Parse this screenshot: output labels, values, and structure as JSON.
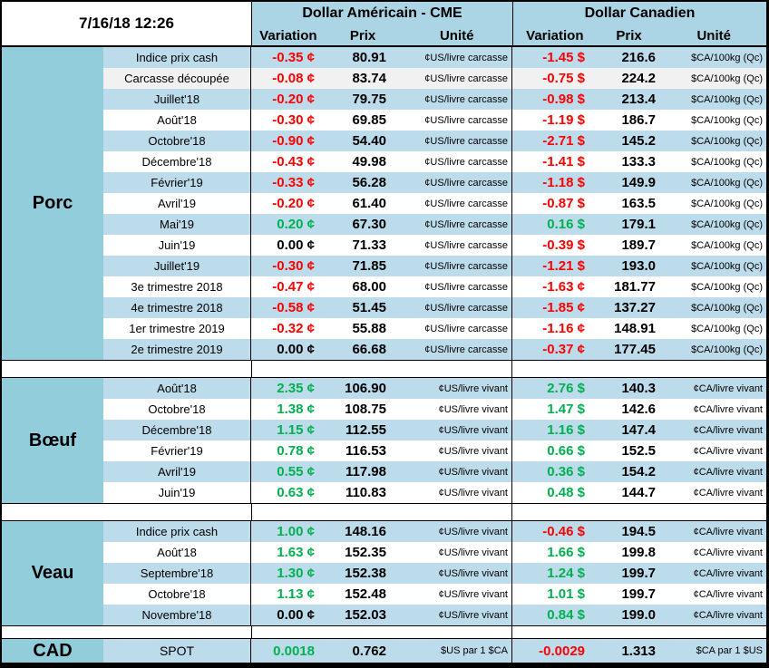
{
  "colors": {
    "section_teal": "#92CDDC",
    "row_blue": "#BDDCEB",
    "header_blue": "#ABD5E4",
    "positive_green": "#00B050",
    "negative_red": "#FF0000",
    "neutral_black": "#000000"
  },
  "header": {
    "timestamp": "7/16/18 12:26",
    "us": {
      "title": "Dollar Américain - CME",
      "variation": "Variation",
      "prix": "Prix",
      "unite": "Unité"
    },
    "ca": {
      "title": "Dollar Canadien",
      "variation": "Variation",
      "prix": "Prix",
      "unite": "Unité"
    }
  },
  "sections": [
    {
      "name": "Porc",
      "rows": [
        {
          "label": "Indice prix cash",
          "us": {
            "variation": "-0.35 ¢",
            "trend": "down",
            "prix": "80.91",
            "unite": "¢US/livre carcasse"
          },
          "ca": {
            "variation": "-1.45 $",
            "trend": "down",
            "prix": "216.6",
            "unite": "$CA/100kg (Qc)"
          }
        },
        {
          "label": "Carcasse découpée",
          "shade": true,
          "us": {
            "variation": "-0.08 ¢",
            "trend": "down",
            "prix": "83.74",
            "unite": "¢US/livre carcasse"
          },
          "ca": {
            "variation": "-0.75 $",
            "trend": "down",
            "prix": "224.2",
            "unite": "$CA/100kg (Qc)"
          }
        },
        {
          "label": "Juillet'18",
          "us": {
            "variation": "-0.20 ¢",
            "trend": "down",
            "prix": "79.75",
            "unite": "¢US/livre carcasse"
          },
          "ca": {
            "variation": "-0.98 $",
            "trend": "down",
            "prix": "213.4",
            "unite": "$CA/100kg (Qc)"
          }
        },
        {
          "label": "Août'18",
          "us": {
            "variation": "-0.30 ¢",
            "trend": "down",
            "prix": "69.85",
            "unite": "¢US/livre carcasse"
          },
          "ca": {
            "variation": "-1.19 $",
            "trend": "down",
            "prix": "186.7",
            "unite": "$CA/100kg (Qc)"
          }
        },
        {
          "label": "Octobre'18",
          "us": {
            "variation": "-0.90 ¢",
            "trend": "down",
            "prix": "54.40",
            "unite": "¢US/livre carcasse"
          },
          "ca": {
            "variation": "-2.71 $",
            "trend": "down",
            "prix": "145.2",
            "unite": "$CA/100kg (Qc)"
          }
        },
        {
          "label": "Décembre'18",
          "us": {
            "variation": "-0.43 ¢",
            "trend": "down",
            "prix": "49.98",
            "unite": "¢US/livre carcasse"
          },
          "ca": {
            "variation": "-1.41 $",
            "trend": "down",
            "prix": "133.3",
            "unite": "$CA/100kg (Qc)"
          }
        },
        {
          "label": "Février'19",
          "us": {
            "variation": "-0.33 ¢",
            "trend": "down",
            "prix": "56.28",
            "unite": "¢US/livre carcasse"
          },
          "ca": {
            "variation": "-1.18 $",
            "trend": "down",
            "prix": "149.9",
            "unite": "$CA/100kg (Qc)"
          }
        },
        {
          "label": "Avril'19",
          "us": {
            "variation": "-0.20 ¢",
            "trend": "down",
            "prix": "61.40",
            "unite": "¢US/livre carcasse"
          },
          "ca": {
            "variation": "-0.87 $",
            "trend": "down",
            "prix": "163.5",
            "unite": "$CA/100kg (Qc)"
          }
        },
        {
          "label": "Mai'19",
          "us": {
            "variation": "0.20 ¢",
            "trend": "up",
            "prix": "67.30",
            "unite": "¢US/livre carcasse"
          },
          "ca": {
            "variation": "0.16 $",
            "trend": "up",
            "prix": "179.1",
            "unite": "$CA/100kg (Qc)"
          }
        },
        {
          "label": "Juin'19",
          "us": {
            "variation": "0.00 ¢",
            "trend": "flat",
            "prix": "71.33",
            "unite": "¢US/livre carcasse"
          },
          "ca": {
            "variation": "-0.39 $",
            "trend": "down",
            "prix": "189.7",
            "unite": "$CA/100kg (Qc)"
          }
        },
        {
          "label": "Juillet'19",
          "us": {
            "variation": "-0.30 ¢",
            "trend": "down",
            "prix": "71.85",
            "unite": "¢US/livre carcasse"
          },
          "ca": {
            "variation": "-1.21 $",
            "trend": "down",
            "prix": "193.0",
            "unite": "$CA/100kg (Qc)"
          }
        },
        {
          "label": "3e trimestre 2018",
          "us": {
            "variation": "-0.47 ¢",
            "trend": "down",
            "prix": "68.00",
            "unite": "¢US/livre carcasse"
          },
          "ca": {
            "variation": "-1.63 ¢",
            "trend": "down",
            "prix": "181.77",
            "unite": "$CA/100kg (Qc)"
          }
        },
        {
          "label": "4e trimestre 2018",
          "us": {
            "variation": "-0.58 ¢",
            "trend": "down",
            "prix": "51.45",
            "unite": "¢US/livre carcasse"
          },
          "ca": {
            "variation": "-1.85 ¢",
            "trend": "down",
            "prix": "137.27",
            "unite": "$CA/100kg (Qc)"
          }
        },
        {
          "label": "1er trimestre 2019",
          "us": {
            "variation": "-0.32 ¢",
            "trend": "down",
            "prix": "55.88",
            "unite": "¢US/livre carcasse"
          },
          "ca": {
            "variation": "-1.16 ¢",
            "trend": "down",
            "prix": "148.91",
            "unite": "$CA/100kg (Qc)"
          }
        },
        {
          "label": "2e trimestre 2019",
          "us": {
            "variation": "0.00 ¢",
            "trend": "flat",
            "prix": "66.68",
            "unite": "¢US/livre carcasse"
          },
          "ca": {
            "variation": "-0.37 ¢",
            "trend": "down",
            "prix": "177.45",
            "unite": "$CA/100kg (Qc)"
          }
        }
      ]
    },
    {
      "name": "Bœuf",
      "rows": [
        {
          "label": "Août'18",
          "us": {
            "variation": "2.35 ¢",
            "trend": "up",
            "prix": "106.90",
            "unite": "¢US/livre vivant"
          },
          "ca": {
            "variation": "2.76 $",
            "trend": "up",
            "prix": "140.3",
            "unite": "¢CA/livre vivant"
          }
        },
        {
          "label": "Octobre'18",
          "us": {
            "variation": "1.38 ¢",
            "trend": "up",
            "prix": "108.75",
            "unite": "¢US/livre vivant"
          },
          "ca": {
            "variation": "1.47 $",
            "trend": "up",
            "prix": "142.6",
            "unite": "¢CA/livre vivant"
          }
        },
        {
          "label": "Décembre'18",
          "us": {
            "variation": "1.15 ¢",
            "trend": "up",
            "prix": "112.55",
            "unite": "¢US/livre vivant"
          },
          "ca": {
            "variation": "1.16 $",
            "trend": "up",
            "prix": "147.4",
            "unite": "¢CA/livre vivant"
          }
        },
        {
          "label": "Février'19",
          "us": {
            "variation": "0.78 ¢",
            "trend": "up",
            "prix": "116.53",
            "unite": "¢US/livre vivant"
          },
          "ca": {
            "variation": "0.66 $",
            "trend": "up",
            "prix": "152.5",
            "unite": "¢CA/livre vivant"
          }
        },
        {
          "label": "Avril'19",
          "us": {
            "variation": "0.55 ¢",
            "trend": "up",
            "prix": "117.98",
            "unite": "¢US/livre vivant"
          },
          "ca": {
            "variation": "0.36 $",
            "trend": "up",
            "prix": "154.2",
            "unite": "¢CA/livre vivant"
          }
        },
        {
          "label": "Juin'19",
          "us": {
            "variation": "0.63 ¢",
            "trend": "up",
            "prix": "110.83",
            "unite": "¢US/livre vivant"
          },
          "ca": {
            "variation": "0.48 $",
            "trend": "up",
            "prix": "144.7",
            "unite": "¢CA/livre vivant"
          }
        }
      ]
    },
    {
      "name": "Veau",
      "rows": [
        {
          "label": "Indice prix cash",
          "us": {
            "variation": "1.00 ¢",
            "trend": "up",
            "prix": "148.16",
            "unite": "¢US/livre vivant"
          },
          "ca": {
            "variation": "-0.46 $",
            "trend": "down",
            "prix": "194.5",
            "unite": "¢CA/livre vivant"
          }
        },
        {
          "label": "Août'18",
          "us": {
            "variation": "1.63 ¢",
            "trend": "up",
            "prix": "152.35",
            "unite": "¢US/livre vivant"
          },
          "ca": {
            "variation": "1.66 $",
            "trend": "up",
            "prix": "199.8",
            "unite": "¢CA/livre vivant"
          }
        },
        {
          "label": "Septembre'18",
          "us": {
            "variation": "1.30 ¢",
            "trend": "up",
            "prix": "152.38",
            "unite": "¢US/livre vivant"
          },
          "ca": {
            "variation": "1.24 $",
            "trend": "up",
            "prix": "199.7",
            "unite": "¢CA/livre vivant"
          }
        },
        {
          "label": "Octobre'18",
          "us": {
            "variation": "1.13 ¢",
            "trend": "up",
            "prix": "152.48",
            "unite": "¢US/livre vivant"
          },
          "ca": {
            "variation": "1.01 $",
            "trend": "up",
            "prix": "199.7",
            "unite": "¢CA/livre vivant"
          }
        },
        {
          "label": "Novembre'18",
          "us": {
            "variation": "0.00 ¢",
            "trend": "flat",
            "prix": "152.03",
            "unite": "¢US/livre vivant"
          },
          "ca": {
            "variation": "0.84 $",
            "trend": "up",
            "prix": "199.0",
            "unite": "¢CA/livre vivant"
          }
        }
      ]
    },
    {
      "name": "CAD",
      "compact": true,
      "rows": [
        {
          "label": "SPOT",
          "us": {
            "variation": "0.0018",
            "trend": "up",
            "prix": "0.762",
            "unite": "$US par 1 $CA"
          },
          "ca": {
            "variation": "-0.0029",
            "trend": "down",
            "prix": "1.313",
            "unite": "$CA par 1 $US"
          }
        }
      ]
    }
  ]
}
